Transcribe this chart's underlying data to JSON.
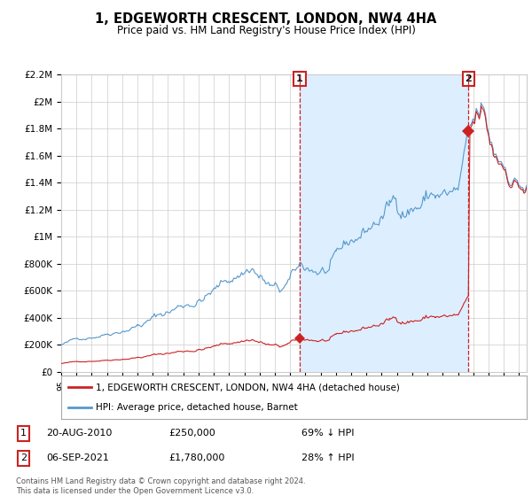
{
  "title": "1, EDGEWORTH CRESCENT, LONDON, NW4 4HA",
  "subtitle": "Price paid vs. HM Land Registry's House Price Index (HPI)",
  "xlim_start": 1995.0,
  "xlim_end": 2025.5,
  "ylim": [
    0,
    2200000
  ],
  "yticks": [
    0,
    200000,
    400000,
    600000,
    800000,
    1000000,
    1200000,
    1400000,
    1600000,
    1800000,
    2000000,
    2200000
  ],
  "ytick_labels": [
    "£0",
    "£200K",
    "£400K",
    "£600K",
    "£800K",
    "£1M",
    "£1.2M",
    "£1.4M",
    "£1.6M",
    "£1.8M",
    "£2M",
    "£2.2M"
  ],
  "hpi_color": "#5599cc",
  "hpi_fill_color": "#ddeeff",
  "price_color": "#cc2222",
  "dashed_line_color": "#cc2222",
  "sale1_year": 2010.63,
  "sale1_price": 250000,
  "sale2_year": 2021.68,
  "sale2_price": 1780000,
  "legend_label1": "1, EDGEWORTH CRESCENT, LONDON, NW4 4HA (detached house)",
  "legend_label2": "HPI: Average price, detached house, Barnet",
  "note1_label": "1",
  "note1_date": "20-AUG-2010",
  "note1_price": "£250,000",
  "note1_hpi": "69% ↓ HPI",
  "note2_label": "2",
  "note2_date": "06-SEP-2021",
  "note2_price": "£1,780,000",
  "note2_hpi": "28% ↑ HPI",
  "footer": "Contains HM Land Registry data © Crown copyright and database right 2024.\nThis data is licensed under the Open Government Licence v3.0.",
  "bg_color": "#ffffff",
  "grid_color": "#cccccc"
}
